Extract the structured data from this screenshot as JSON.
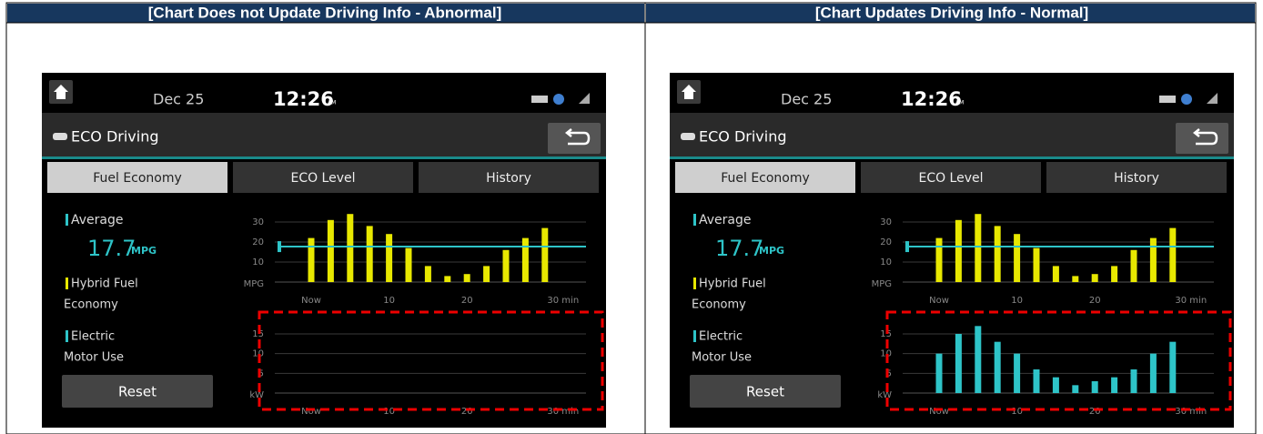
{
  "columns": [
    {
      "header": "[Chart Does not Update Driving Info - Abnormal]",
      "screen": {
        "date": "Dec 25",
        "time": "12:26",
        "meridiem": "AM",
        "title": "ECO Driving",
        "tabs": [
          "Fuel Economy",
          "ECO Level",
          "History"
        ],
        "average_label": "Average",
        "average": 17.7,
        "average_unit": "MPG",
        "legend": [
          {
            "lines": [
              "Hybrid Fuel",
              "Economy"
            ],
            "color": "#e8e800"
          },
          {
            "lines": [
              "Electric",
              "Motor Use"
            ],
            "color": "#2ec4c8"
          }
        ],
        "reset": "Reset",
        "fuel_chart": {
          "ylim": [
            0,
            35
          ],
          "yticks": [
            10,
            20,
            30
          ],
          "y_unit": "MPG",
          "x_labels": [
            "Now",
            "10",
            "20",
            "30 min"
          ],
          "color": "#e8e800",
          "values": [
            22,
            31,
            34,
            28,
            24,
            17,
            8,
            3,
            4,
            8,
            16,
            22,
            27
          ]
        },
        "electric_chart": {
          "ylim": [
            0,
            18
          ],
          "yticks": [
            5,
            10,
            15
          ],
          "y_unit": "kW",
          "x_labels": [
            "Now",
            "10",
            "20",
            "30 min"
          ],
          "color": "#2ec4c8",
          "values": []
        }
      }
    },
    {
      "header": "[Chart Updates Driving Info - Normal]",
      "screen": {
        "date": "Dec 25",
        "time": "12:26",
        "meridiem": "AM",
        "title": "ECO Driving",
        "tabs": [
          "Fuel Economy",
          "ECO Level",
          "History"
        ],
        "average_label": "Average",
        "average": 17.7,
        "average_unit": "MPG",
        "legend": [
          {
            "lines": [
              "Hybrid Fuel",
              "Economy"
            ],
            "color": "#e8e800"
          },
          {
            "lines": [
              "Electric",
              "Motor Use"
            ],
            "color": "#2ec4c8"
          }
        ],
        "reset": "Reset",
        "fuel_chart": {
          "ylim": [
            0,
            35
          ],
          "yticks": [
            10,
            20,
            30
          ],
          "y_unit": "MPG",
          "x_labels": [
            "Now",
            "10",
            "20",
            "30 min"
          ],
          "color": "#e8e800",
          "values": [
            22,
            31,
            34,
            28,
            24,
            17,
            8,
            3,
            4,
            8,
            16,
            22,
            27
          ]
        },
        "electric_chart": {
          "ylim": [
            0,
            18
          ],
          "yticks": [
            5,
            10,
            15
          ],
          "y_unit": "kW",
          "x_labels": [
            "Now",
            "10",
            "20",
            "30 min"
          ],
          "color": "#2ec4c8",
          "values": [
            10,
            15,
            17,
            13,
            10,
            6,
            4,
            2,
            3,
            4,
            6,
            10,
            13
          ]
        }
      }
    }
  ]
}
